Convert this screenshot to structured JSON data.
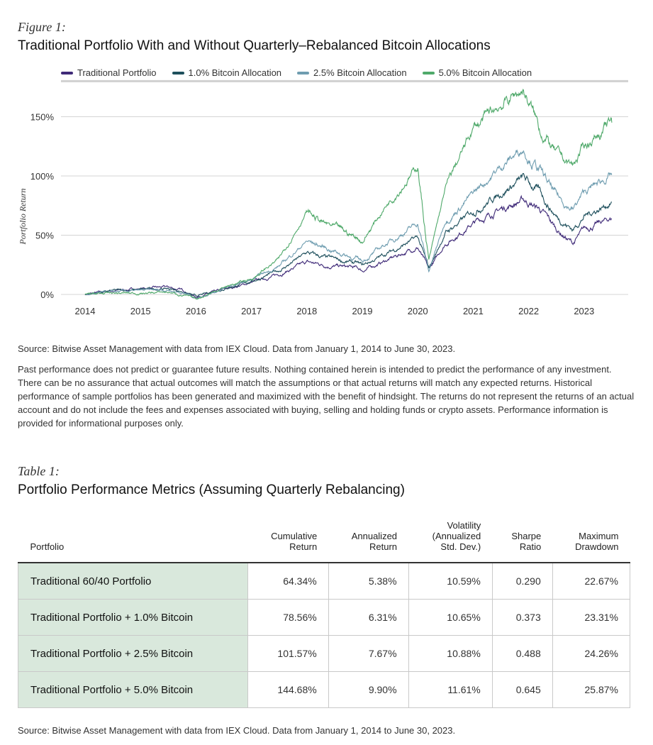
{
  "figure": {
    "label": "Figure 1:",
    "title": "Traditional Portfolio With and Without Quarterly–Rebalanced Bitcoin Allocations"
  },
  "chart_data": {
    "type": "line",
    "title": "Traditional Portfolio With and Without Quarterly–Rebalanced Bitcoin Allocations",
    "ylabel": "Portfolio Return",
    "xlabel": "",
    "xlim": [
      2013.6,
      2023.9
    ],
    "ylim": [
      0,
      180
    ],
    "yticks": [
      0,
      50,
      100,
      150
    ],
    "ytick_labels": [
      "0%",
      "50%",
      "100%",
      "150%"
    ],
    "xticks": [
      "2014",
      "2015",
      "2016",
      "2017",
      "2018",
      "2019",
      "2020",
      "2021",
      "2022",
      "2023"
    ],
    "grid": "horizontal",
    "legend_position": "top",
    "series": [
      {
        "name": "Traditional Portfolio",
        "color": "#3f2a78",
        "points": [
          [
            2014,
            0
          ],
          [
            2014.5,
            3
          ],
          [
            2015,
            5
          ],
          [
            2015.5,
            6
          ],
          [
            2015.8,
            3
          ],
          [
            2016,
            -2
          ],
          [
            2016.5,
            4
          ],
          [
            2017,
            10
          ],
          [
            2017.5,
            17
          ],
          [
            2018,
            27
          ],
          [
            2018.3,
            25
          ],
          [
            2018.9,
            22
          ],
          [
            2019,
            20
          ],
          [
            2019.5,
            30
          ],
          [
            2020,
            40
          ],
          [
            2020.2,
            20
          ],
          [
            2020.5,
            43
          ],
          [
            2021,
            60
          ],
          [
            2021.5,
            72
          ],
          [
            2021.9,
            80
          ],
          [
            2022.2,
            72
          ],
          [
            2022.5,
            55
          ],
          [
            2022.8,
            43
          ],
          [
            2023,
            55
          ],
          [
            2023.5,
            64
          ]
        ]
      },
      {
        "name": "1.0% Bitcoin Allocation",
        "color": "#1e4f5c",
        "points": [
          [
            2014,
            0
          ],
          [
            2014.5,
            3
          ],
          [
            2015,
            4
          ],
          [
            2015.5,
            5
          ],
          [
            2015.8,
            2
          ],
          [
            2016,
            -2
          ],
          [
            2016.5,
            5
          ],
          [
            2017,
            11
          ],
          [
            2017.5,
            20
          ],
          [
            2018,
            35
          ],
          [
            2018.3,
            31
          ],
          [
            2018.9,
            26
          ],
          [
            2019,
            24
          ],
          [
            2019.5,
            36
          ],
          [
            2020,
            48
          ],
          [
            2020.2,
            21
          ],
          [
            2020.5,
            52
          ],
          [
            2021,
            70
          ],
          [
            2021.5,
            86
          ],
          [
            2021.9,
            98
          ],
          [
            2022.2,
            86
          ],
          [
            2022.5,
            66
          ],
          [
            2022.8,
            55
          ],
          [
            2023,
            66
          ],
          [
            2023.5,
            78
          ]
        ]
      },
      {
        "name": "2.5% Bitcoin Allocation",
        "color": "#6f9db0",
        "points": [
          [
            2014,
            0
          ],
          [
            2014.5,
            2
          ],
          [
            2015,
            3
          ],
          [
            2015.5,
            4
          ],
          [
            2015.8,
            1
          ],
          [
            2016,
            -3
          ],
          [
            2016.5,
            5
          ],
          [
            2017,
            12
          ],
          [
            2017.5,
            24
          ],
          [
            2018,
            45
          ],
          [
            2018.3,
            40
          ],
          [
            2018.9,
            30
          ],
          [
            2019,
            28
          ],
          [
            2019.5,
            45
          ],
          [
            2020,
            60
          ],
          [
            2020.2,
            20
          ],
          [
            2020.5,
            62
          ],
          [
            2021,
            85
          ],
          [
            2021.5,
            108
          ],
          [
            2021.9,
            124
          ],
          [
            2022.2,
            105
          ],
          [
            2022.5,
            82
          ],
          [
            2022.8,
            72
          ],
          [
            2023,
            86
          ],
          [
            2023.5,
            101
          ]
        ]
      },
      {
        "name": "5.0% Bitcoin Allocation",
        "color": "#4fa96a",
        "points": [
          [
            2014,
            0
          ],
          [
            2014.5,
            1
          ],
          [
            2015,
            1
          ],
          [
            2015.5,
            2
          ],
          [
            2015.8,
            -1
          ],
          [
            2016,
            -4
          ],
          [
            2016.5,
            6
          ],
          [
            2017,
            13
          ],
          [
            2017.5,
            30
          ],
          [
            2018,
            70
          ],
          [
            2018.3,
            60
          ],
          [
            2018.9,
            48
          ],
          [
            2019,
            45
          ],
          [
            2019.5,
            80
          ],
          [
            2020,
            108
          ],
          [
            2020.2,
            28
          ],
          [
            2020.5,
            90
          ],
          [
            2021,
            140
          ],
          [
            2021.5,
            160
          ],
          [
            2021.9,
            173
          ],
          [
            2022.2,
            140
          ],
          [
            2022.5,
            118
          ],
          [
            2022.8,
            108
          ],
          [
            2023,
            125
          ],
          [
            2023.5,
            145
          ]
        ]
      }
    ]
  },
  "chart_source": "Source: Bitwise Asset Management with data from IEX Cloud. Data from January 1, 2014 to June 30, 2023.",
  "disclaimer": "Past performance does not predict or guarantee future results. Nothing contained herein is intended to predict the performance of any investment. There can be no assurance that actual outcomes will match the assumptions or that actual returns will match any expected returns. Historical performance of sample portfolios has been generated and maximized with the benefit of hindsight. The returns do not represent the returns of an actual account and do not include the fees and expenses associated with buying, selling and holding funds or crypto assets. Performance information is provided for informational purposes only.",
  "table": {
    "label": "Table 1:",
    "title": "Portfolio Performance Metrics (Assuming Quarterly Rebalancing)",
    "headers": [
      [
        "Portfolio"
      ],
      [
        "Cumulative",
        "Return"
      ],
      [
        "Annualized",
        "Return"
      ],
      [
        "Volatility",
        "(Annualized",
        "Std. Dev.)"
      ],
      [
        "Sharpe",
        "Ratio"
      ],
      [
        "Maximum",
        "Drawdown"
      ]
    ],
    "rows": [
      [
        "Traditional 60/40 Portfolio",
        "64.34%",
        "5.38%",
        "10.59%",
        "0.290",
        "22.67%"
      ],
      [
        "Traditional Portfolio + 1.0% Bitcoin",
        "78.56%",
        "6.31%",
        "10.65%",
        "0.373",
        "23.31%"
      ],
      [
        "Traditional Portfolio + 2.5% Bitcoin",
        "101.57%",
        "7.67%",
        "10.88%",
        "0.488",
        "24.26%"
      ],
      [
        "Traditional Portfolio + 5.0% Bitcoin",
        "144.68%",
        "9.90%",
        "11.61%",
        "0.645",
        "25.87%"
      ]
    ],
    "source": "Source: Bitwise Asset Management with data from IEX Cloud. Data from January 1, 2014 to June 30, 2023."
  }
}
